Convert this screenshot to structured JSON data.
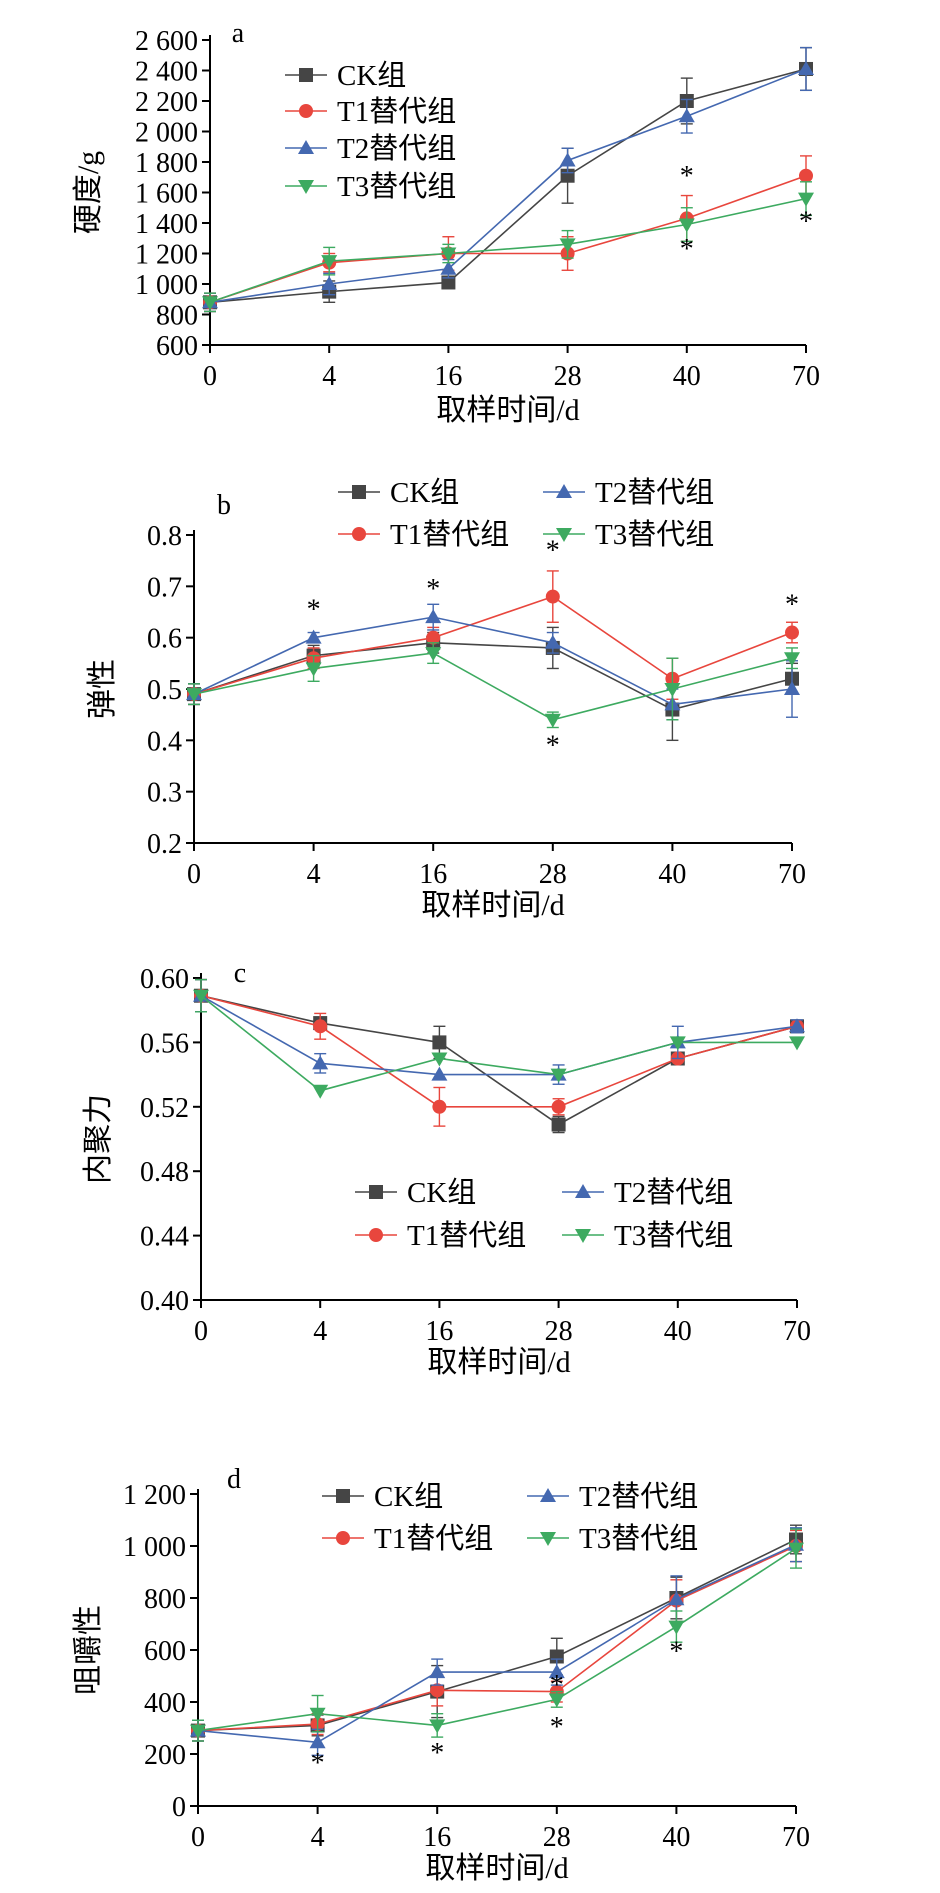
{
  "colors": {
    "CK": "#454545",
    "T1": "#e8463d",
    "T2": "#4468b0",
    "T3": "#3daa60"
  },
  "legend": {
    "CK": "CK组",
    "T1": "T1替代组",
    "T2": "T2替代组",
    "T3": "T3替代组"
  },
  "chart_data": [
    {
      "type": "line",
      "panel_label": "a",
      "xlabel": "取样时间/d",
      "ylabel": "硬度/g",
      "categories": [
        "0",
        "4",
        "16",
        "28",
        "40",
        "70"
      ],
      "ylim": [
        600,
        2600
      ],
      "yticks": [
        600,
        800,
        1000,
        1200,
        1400,
        1600,
        1800,
        2000,
        2200,
        2400,
        2600
      ],
      "ytick_labels": [
        "600",
        "800",
        "1 000",
        "1 200",
        "1 400",
        "1 600",
        "1 800",
        "2 000",
        "2 200",
        "2 400",
        "2 600"
      ],
      "legend_position": "top-left",
      "series": [
        {
          "key": "CK",
          "name": "CK组",
          "marker": "square",
          "values": [
            880,
            950,
            1010,
            1710,
            2200,
            2410
          ],
          "errors": [
            60,
            70,
            20,
            180,
            150,
            140
          ]
        },
        {
          "key": "T1",
          "name": "T1替代组",
          "marker": "circle",
          "values": [
            880,
            1140,
            1200,
            1200,
            1430,
            1710
          ],
          "errors": [
            60,
            60,
            110,
            110,
            150,
            130
          ]
        },
        {
          "key": "T2",
          "name": "T2替代组",
          "marker": "triangle-up",
          "values": [
            880,
            1000,
            1100,
            1810,
            2100,
            2410
          ],
          "errors": [
            60,
            70,
            60,
            80,
            110,
            140
          ]
        },
        {
          "key": "T3",
          "name": "T3替代组",
          "marker": "triangle-down",
          "values": [
            880,
            1150,
            1200,
            1260,
            1390,
            1560
          ],
          "errors": [
            60,
            90,
            60,
            90,
            110,
            110
          ]
        }
      ],
      "annotations": [
        {
          "text": "*",
          "x": "40",
          "y": 1650
        },
        {
          "text": "*",
          "x": "40",
          "y": 1170
        },
        {
          "text": "*",
          "x": "70",
          "y": 1350
        }
      ]
    },
    {
      "type": "line",
      "panel_label": "b",
      "xlabel": "取样时间/d",
      "ylabel": "弹性",
      "categories": [
        "0",
        "4",
        "16",
        "28",
        "40",
        "70"
      ],
      "ylim": [
        0.2,
        0.8
      ],
      "yticks": [
        0.2,
        0.3,
        0.4,
        0.5,
        0.6,
        0.7,
        0.8
      ],
      "ytick_labels": [
        "0.2",
        "0.3",
        "0.4",
        "0.5",
        "0.6",
        "0.7",
        "0.8"
      ],
      "legend_position": "top",
      "series": [
        {
          "key": "CK",
          "name": "CK组",
          "marker": "square",
          "values": [
            0.49,
            0.565,
            0.59,
            0.58,
            0.46,
            0.52
          ],
          "errors": [
            0.02,
            0.02,
            0.02,
            0.04,
            0.06,
            0.03
          ]
        },
        {
          "key": "T1",
          "name": "T1替代组",
          "marker": "circle",
          "values": [
            0.49,
            0.56,
            0.6,
            0.68,
            0.52,
            0.61
          ],
          "errors": [
            0.02,
            0.02,
            0.02,
            0.05,
            0.04,
            0.02
          ]
        },
        {
          "key": "T2",
          "name": "T2替代组",
          "marker": "triangle-up",
          "values": [
            0.49,
            0.6,
            0.64,
            0.59,
            0.47,
            0.5
          ],
          "errors": [
            0.02,
            0.01,
            0.025,
            0.02,
            0.03,
            0.055
          ]
        },
        {
          "key": "T3",
          "name": "T3替代组",
          "marker": "triangle-down",
          "values": [
            0.49,
            0.54,
            0.57,
            0.44,
            0.5,
            0.56
          ],
          "errors": [
            0.02,
            0.025,
            0.02,
            0.015,
            0.06,
            0.02
          ]
        }
      ],
      "annotations": [
        {
          "text": "*",
          "x": "4",
          "y": 0.637
        },
        {
          "text": "*",
          "x": "16",
          "y": 0.677
        },
        {
          "text": "*",
          "x": "28",
          "y": 0.752
        },
        {
          "text": "*",
          "x": "28",
          "y": 0.372
        },
        {
          "text": "*",
          "x": "70",
          "y": 0.647
        }
      ]
    },
    {
      "type": "line",
      "panel_label": "c",
      "xlabel": "取样时间/d",
      "ylabel": "内聚力",
      "categories": [
        "0",
        "4",
        "16",
        "28",
        "40",
        "70"
      ],
      "ylim": [
        0.4,
        0.6
      ],
      "yticks": [
        0.4,
        0.44,
        0.48,
        0.52,
        0.56,
        0.6
      ],
      "ytick_labels": [
        "0.40",
        "0.44",
        "0.48",
        "0.52",
        "0.56",
        "0.60"
      ],
      "legend_position": "bottom-center",
      "series": [
        {
          "key": "CK",
          "name": "CK组",
          "marker": "square",
          "values": [
            0.589,
            0.572,
            0.56,
            0.509,
            0.55,
            0.57
          ],
          "errors": [
            0.01,
            0.003,
            0.01,
            0.005,
            0,
            0
          ]
        },
        {
          "key": "T1",
          "name": "T1替代组",
          "marker": "circle",
          "values": [
            0.589,
            0.57,
            0.52,
            0.52,
            0.55,
            0.57
          ],
          "errors": [
            0.01,
            0.008,
            0.012,
            0.005,
            0,
            0
          ]
        },
        {
          "key": "T2",
          "name": "T2替代组",
          "marker": "triangle-up",
          "values": [
            0.589,
            0.547,
            0.54,
            0.54,
            0.56,
            0.57
          ],
          "errors": [
            0.01,
            0.006,
            0,
            0.006,
            0.01,
            0.004
          ]
        },
        {
          "key": "T3",
          "name": "T3替代组",
          "marker": "triangle-down",
          "values": [
            0.589,
            0.53,
            0.55,
            0.54,
            0.56,
            0.56
          ],
          "errors": [
            0.01,
            0,
            0,
            0,
            0,
            0
          ]
        }
      ],
      "annotations": []
    },
    {
      "type": "line",
      "panel_label": "d",
      "xlabel": "取样时间/d",
      "ylabel": "咀嚼性",
      "categories": [
        "0",
        "4",
        "16",
        "28",
        "40",
        "70"
      ],
      "ylim": [
        0,
        1200
      ],
      "yticks": [
        0,
        200,
        400,
        600,
        800,
        1000,
        1200
      ],
      "ytick_labels": [
        "0",
        "200",
        "400",
        "600",
        "800",
        "1 000",
        "1 200"
      ],
      "legend_position": "top",
      "series": [
        {
          "key": "CK",
          "name": "CK组",
          "marker": "square",
          "values": [
            290,
            310,
            440,
            575,
            800,
            1025
          ],
          "errors": [
            40,
            40,
            100,
            70,
            80,
            55
          ]
        },
        {
          "key": "T1",
          "name": "T1替代组",
          "marker": "circle",
          "values": [
            290,
            315,
            445,
            440,
            790,
            1000
          ],
          "errors": [
            40,
            40,
            60,
            40,
            80,
            60
          ]
        },
        {
          "key": "T2",
          "name": "T2替代组",
          "marker": "triangle-up",
          "values": [
            290,
            245,
            515,
            515,
            795,
            1005
          ],
          "errors": [
            40,
            50,
            50,
            50,
            90,
            65
          ]
        },
        {
          "key": "T3",
          "name": "T3替代组",
          "marker": "triangle-down",
          "values": [
            290,
            355,
            310,
            410,
            690,
            990
          ],
          "errors": [
            40,
            70,
            45,
            30,
            60,
            75
          ]
        }
      ],
      "annotations": [
        {
          "text": "*",
          "x": "4",
          "y": 130
        },
        {
          "text": "*",
          "x": "16",
          "y": 170
        },
        {
          "text": "*",
          "x": "28",
          "y": 270
        },
        {
          "text": "*",
          "x": "28",
          "y": 430
        },
        {
          "text": "*",
          "x": "40",
          "y": 560
        }
      ]
    }
  ]
}
